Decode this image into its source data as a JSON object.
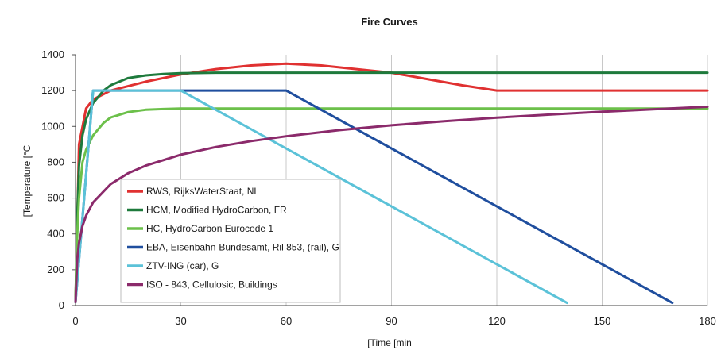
{
  "chart_data": {
    "type": "line",
    "title": "Fire Curves",
    "xlabel": "[Time [min",
    "ylabel": "[Temperature [°C",
    "xlim": [
      0,
      180
    ],
    "ylim": [
      0,
      1400
    ],
    "xticks": [
      "0",
      "30",
      "60",
      "90",
      "120",
      "150",
      "180"
    ],
    "yticks": [
      "0",
      "200",
      "400",
      "600",
      "800",
      "1000",
      "1200",
      "1400"
    ],
    "grid": "vertical",
    "legend_position": "bottom-left inside plot",
    "series": [
      {
        "name": "RWS, RijksWaterStaat, NL",
        "color": "#e03131",
        "points": [
          [
            0,
            20
          ],
          [
            1,
            900
          ],
          [
            3,
            1100
          ],
          [
            5,
            1150
          ],
          [
            8,
            1180
          ],
          [
            10,
            1200
          ],
          [
            20,
            1250
          ],
          [
            30,
            1290
          ],
          [
            40,
            1320
          ],
          [
            50,
            1340
          ],
          [
            60,
            1350
          ],
          [
            70,
            1340
          ],
          [
            80,
            1320
          ],
          [
            90,
            1300
          ],
          [
            100,
            1265
          ],
          [
            110,
            1230
          ],
          [
            120,
            1200
          ],
          [
            180,
            1200
          ]
        ]
      },
      {
        "name": "HCM, Modified HydroCarbon, FR",
        "color": "#1e7a3c",
        "points": [
          [
            0,
            20
          ],
          [
            0.5,
            500
          ],
          [
            1,
            780
          ],
          [
            2,
            950
          ],
          [
            3,
            1040
          ],
          [
            5,
            1130
          ],
          [
            8,
            1200
          ],
          [
            10,
            1230
          ],
          [
            15,
            1270
          ],
          [
            20,
            1285
          ],
          [
            25,
            1293
          ],
          [
            30,
            1297
          ],
          [
            40,
            1300
          ],
          [
            180,
            1300
          ]
        ]
      },
      {
        "name": "HC, HydroCarbon Eurocode 1",
        "color": "#6cc04a",
        "points": [
          [
            0,
            20
          ],
          [
            0.5,
            400
          ],
          [
            1,
            600
          ],
          [
            2,
            800
          ],
          [
            3,
            870
          ],
          [
            5,
            950
          ],
          [
            8,
            1020
          ],
          [
            10,
            1050
          ],
          [
            15,
            1080
          ],
          [
            20,
            1093
          ],
          [
            25,
            1097
          ],
          [
            30,
            1100
          ],
          [
            180,
            1100
          ]
        ]
      },
      {
        "name": "EBA, Eisenbahn-Bundesamt, Ril 853, (rail), G",
        "color": "#1f4e9e",
        "points": [
          [
            0,
            20
          ],
          [
            5,
            1200
          ],
          [
            60,
            1200
          ],
          [
            170,
            15
          ]
        ]
      },
      {
        "name": "ZTV-ING (car), G",
        "color": "#5bc2d8",
        "points": [
          [
            0,
            20
          ],
          [
            5,
            1200
          ],
          [
            30,
            1200
          ],
          [
            140,
            15
          ]
        ]
      },
      {
        "name": "ISO - 843, Cellulosic, Buildings",
        "color": "#8b2a6b",
        "points": [
          [
            0,
            20
          ],
          [
            0.5,
            261
          ],
          [
            1,
            349
          ],
          [
            2,
            445
          ],
          [
            3,
            502
          ],
          [
            5,
            576
          ],
          [
            10,
            678
          ],
          [
            15,
            739
          ],
          [
            20,
            781
          ],
          [
            30,
            842
          ],
          [
            40,
            885
          ],
          [
            50,
            918
          ],
          [
            60,
            945
          ],
          [
            75,
            979
          ],
          [
            90,
            1006
          ],
          [
            105,
            1029
          ],
          [
            120,
            1049
          ],
          [
            135,
            1066
          ],
          [
            150,
            1082
          ],
          [
            165,
            1096
          ],
          [
            180,
            1110
          ]
        ]
      }
    ]
  }
}
